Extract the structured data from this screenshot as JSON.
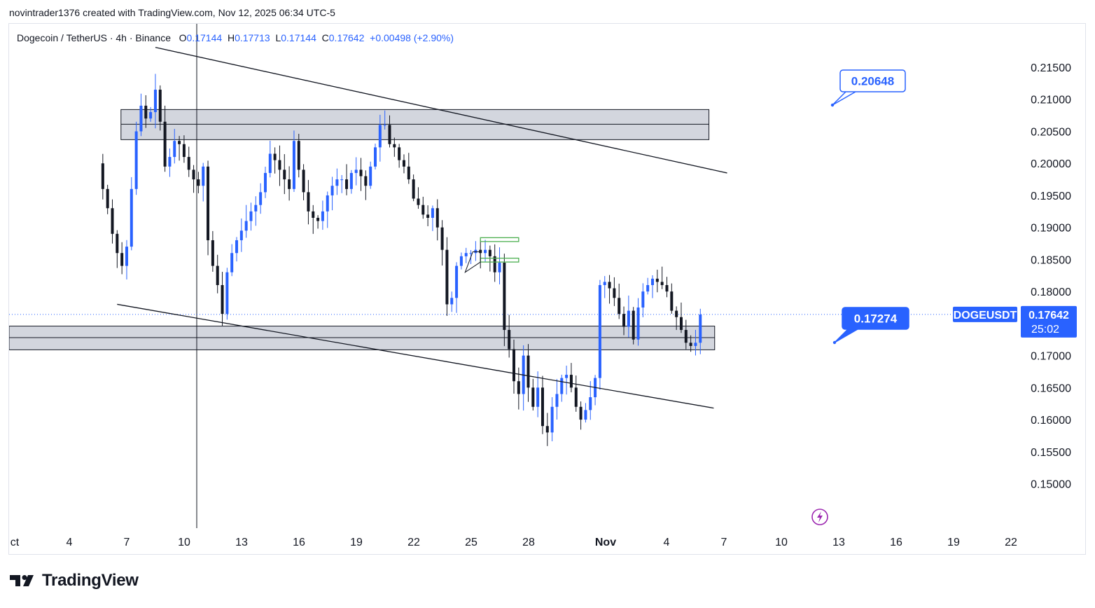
{
  "attribution": "novintrader1376 created with TradingView.com, Nov 12, 2025 06:34 UTC-5",
  "legend": {
    "symbol": "Dogecoin / TetherUS · 4h · Binance",
    "open_label": "O",
    "open": "0.17144",
    "high_label": "H",
    "high": "0.17713",
    "low_label": "L",
    "low": "0.17144",
    "close_label": "C",
    "close": "0.17642",
    "change": "+0.00498 (+2.90%)"
  },
  "price_scale": [
    "0.21500",
    "0.21000",
    "0.20500",
    "0.20000",
    "0.19500",
    "0.19000",
    "0.18500",
    "0.18000",
    "0.17000",
    "0.16500",
    "0.16000",
    "0.15500",
    "0.15000"
  ],
  "time_axis": [
    "ct",
    "4",
    "7",
    "10",
    "13",
    "16",
    "19",
    "22",
    "25",
    "28",
    "Nov",
    "4",
    "7",
    "10",
    "13",
    "16",
    "19",
    "22"
  ],
  "callouts": {
    "upper": "0.20648",
    "lower": "0.17274"
  },
  "last_price": {
    "ticker": "DOGEUSDT",
    "price": "0.17642",
    "countdown": "25:02"
  },
  "colors": {
    "up": "#2962ff",
    "down": "#131722",
    "zone_fill": "#d1d4dc",
    "pattern": "#4caf50",
    "callout": "#2962ff",
    "flash": "#9c27b0"
  },
  "footer": {
    "brand": "TradingView"
  },
  "chart_data": {
    "type": "candlestick",
    "symbol": "DOGEUSDT",
    "timeframe": "4h",
    "ylim": [
      0.147,
      0.2185
    ],
    "start_date": "2025-10-10",
    "points_x_days": [
      10.95,
      11.2,
      11.45,
      11.7,
      11.95,
      12.2,
      12.45,
      12.7,
      12.95,
      13.2,
      13.45,
      13.7,
      13.95,
      14.2,
      14.45,
      14.7,
      14.95,
      15.2,
      15.45,
      15.7,
      15.95,
      16.2,
      16.45,
      16.7,
      16.95,
      17.2,
      17.45,
      17.7,
      17.95,
      18.2,
      18.45,
      18.7,
      18.95,
      19.2,
      19.45,
      19.7,
      19.95,
      20.2,
      20.45,
      20.7,
      20.95,
      21.2,
      21.45,
      21.7,
      21.95,
      22.2,
      22.45,
      22.7,
      22.95,
      23.2,
      23.45,
      23.7,
      23.95,
      24.2,
      24.45,
      24.7,
      24.95,
      25.2,
      25.45,
      25.7,
      25.95,
      26.2,
      26.45,
      26.7,
      26.95,
      27.2,
      27.45,
      27.7,
      27.95,
      28.2,
      28.45,
      28.7,
      28.95,
      29.2,
      29.45,
      29.7,
      29.95,
      30.2,
      30.45,
      30.7,
      30.95,
      31.2,
      31.45,
      31.7,
      31.95,
      32.2,
      32.45,
      32.7,
      32.95,
      33.2,
      33.45,
      33.7,
      33.95,
      34.2,
      34.45,
      34.7,
      34.95,
      35.2,
      35.45,
      35.7,
      35.95,
      36.2,
      36.45,
      36.7,
      36.95,
      37.2,
      37.45,
      37.7,
      37.95,
      38.2,
      38.45,
      38.7,
      38.95,
      39.2,
      39.45,
      39.7,
      39.95,
      40.2,
      40.45,
      40.7,
      40.95,
      41.2,
      41.45,
      41.7,
      41.95,
      42.2,
      42.45,
      42.7,
      42.95,
      43.2,
      43.45,
      43.7
    ],
    "closes": [
      0.196,
      0.193,
      0.189,
      0.186,
      0.184,
      0.187,
      0.196,
      0.205,
      0.209,
      0.207,
      0.208,
      0.2115,
      0.2065,
      0.1995,
      0.201,
      0.2035,
      0.203,
      0.201,
      0.199,
      0.1975,
      0.1965,
      0.1995,
      0.188,
      0.184,
      0.181,
      0.1765,
      0.183,
      0.186,
      0.188,
      0.1895,
      0.191,
      0.1925,
      0.1935,
      0.1955,
      0.1985,
      0.2015,
      0.2005,
      0.199,
      0.1975,
      0.196,
      0.2035,
      0.199,
      0.1955,
      0.1925,
      0.1915,
      0.191,
      0.1925,
      0.195,
      0.1965,
      0.1975,
      0.1975,
      0.196,
      0.1985,
      0.199,
      0.198,
      0.1965,
      0.1995,
      0.2025,
      0.206,
      0.206,
      0.203,
      0.2025,
      0.2005,
      0.1995,
      0.1975,
      0.1945,
      0.1935,
      0.192,
      0.1915,
      0.193,
      0.19,
      0.1865,
      0.178,
      0.179,
      0.184,
      0.1855,
      0.186,
      0.186,
      0.1865,
      0.186,
      0.1865,
      0.1855,
      0.183,
      0.1845,
      0.174,
      0.171,
      0.166,
      0.164,
      0.17,
      0.165,
      0.162,
      0.165,
      0.159,
      0.158,
      0.162,
      0.164,
      0.1665,
      0.167,
      0.165,
      0.162,
      0.16,
      0.1615,
      0.1635,
      0.1665,
      0.181,
      0.1815,
      0.1805,
      0.179,
      0.1765,
      0.1745,
      0.177,
      0.1725,
      0.1775,
      0.18,
      0.181,
      0.182,
      0.1815,
      0.181,
      0.18,
      0.177,
      0.176,
      0.174,
      0.172,
      0.1715,
      0.172,
      0.1764
    ],
    "levels": {
      "resistance_zone": [
        0.2037,
        0.2084
      ],
      "resistance_mid": 0.2061,
      "support_zone": [
        0.1709,
        0.1746
      ],
      "support_mid": 0.1728,
      "last_price": 0.17642
    },
    "trendlines": [
      {
        "from": [
          13.7,
          0.2181
        ],
        "to": [
          43.6,
          0.1985
        ]
      },
      {
        "from": [
          11.7,
          0.178
        ],
        "to": [
          42.9,
          0.1618
        ]
      }
    ]
  }
}
